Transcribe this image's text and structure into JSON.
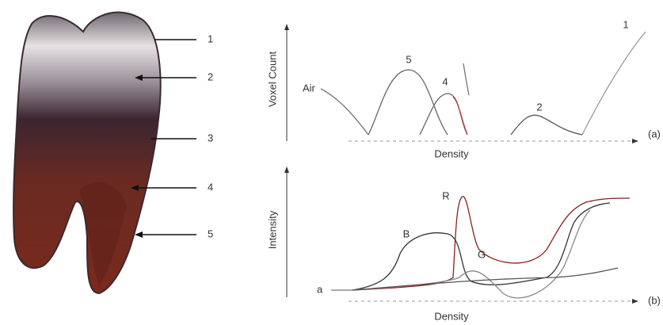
{
  "tooth": {
    "labels": [
      "1",
      "2",
      "3",
      "4",
      "5"
    ]
  },
  "plot_a": {
    "y_label": "Voxel Count",
    "x_label": "Density",
    "air_label": "Air",
    "peak_labels": [
      "5",
      "4",
      "2",
      "1"
    ],
    "tag": "(a)"
  },
  "plot_b": {
    "y_label": "Intensity",
    "x_label": "Density",
    "curve_labels": [
      "R",
      "B",
      "G"
    ],
    "start_label": "a",
    "tag": "(b)"
  }
}
